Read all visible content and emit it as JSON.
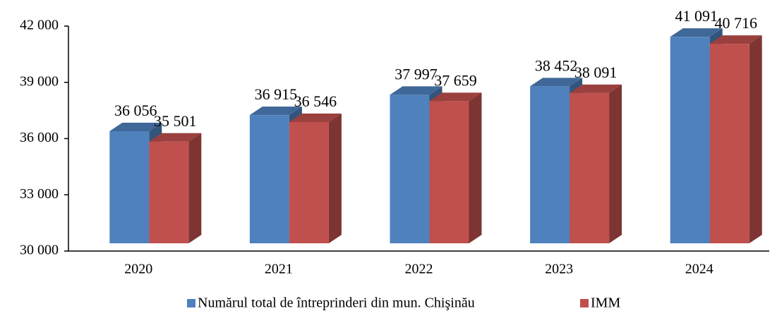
{
  "chart_data": {
    "type": "bar3d",
    "categories": [
      "2020",
      "2021",
      "2022",
      "2023",
      "2024"
    ],
    "series": [
      {
        "name": "Numărul total de întreprinderi din mun. Chişinău",
        "color": "#4f81bd",
        "values": [
          36056,
          36915,
          37997,
          38452,
          41091
        ],
        "value_labels": [
          "36 056",
          "36 915",
          "37 997",
          "38 452",
          "41 091"
        ]
      },
      {
        "name": "IMM",
        "color": "#c0504d",
        "values": [
          35501,
          36546,
          37659,
          38091,
          40716
        ],
        "value_labels": [
          "35 501",
          "36 546",
          "37 659",
          "38 091",
          "40 716"
        ]
      }
    ],
    "ylim": [
      30000,
      42000
    ],
    "yticks": [
      {
        "value": 30000,
        "label": "30 000"
      },
      {
        "value": 33000,
        "label": "33 000"
      },
      {
        "value": 36000,
        "label": "36 000"
      },
      {
        "value": 39000,
        "label": "39 000"
      },
      {
        "value": 42000,
        "label": "42 000"
      }
    ],
    "grid": false,
    "legend": "bottom"
  }
}
